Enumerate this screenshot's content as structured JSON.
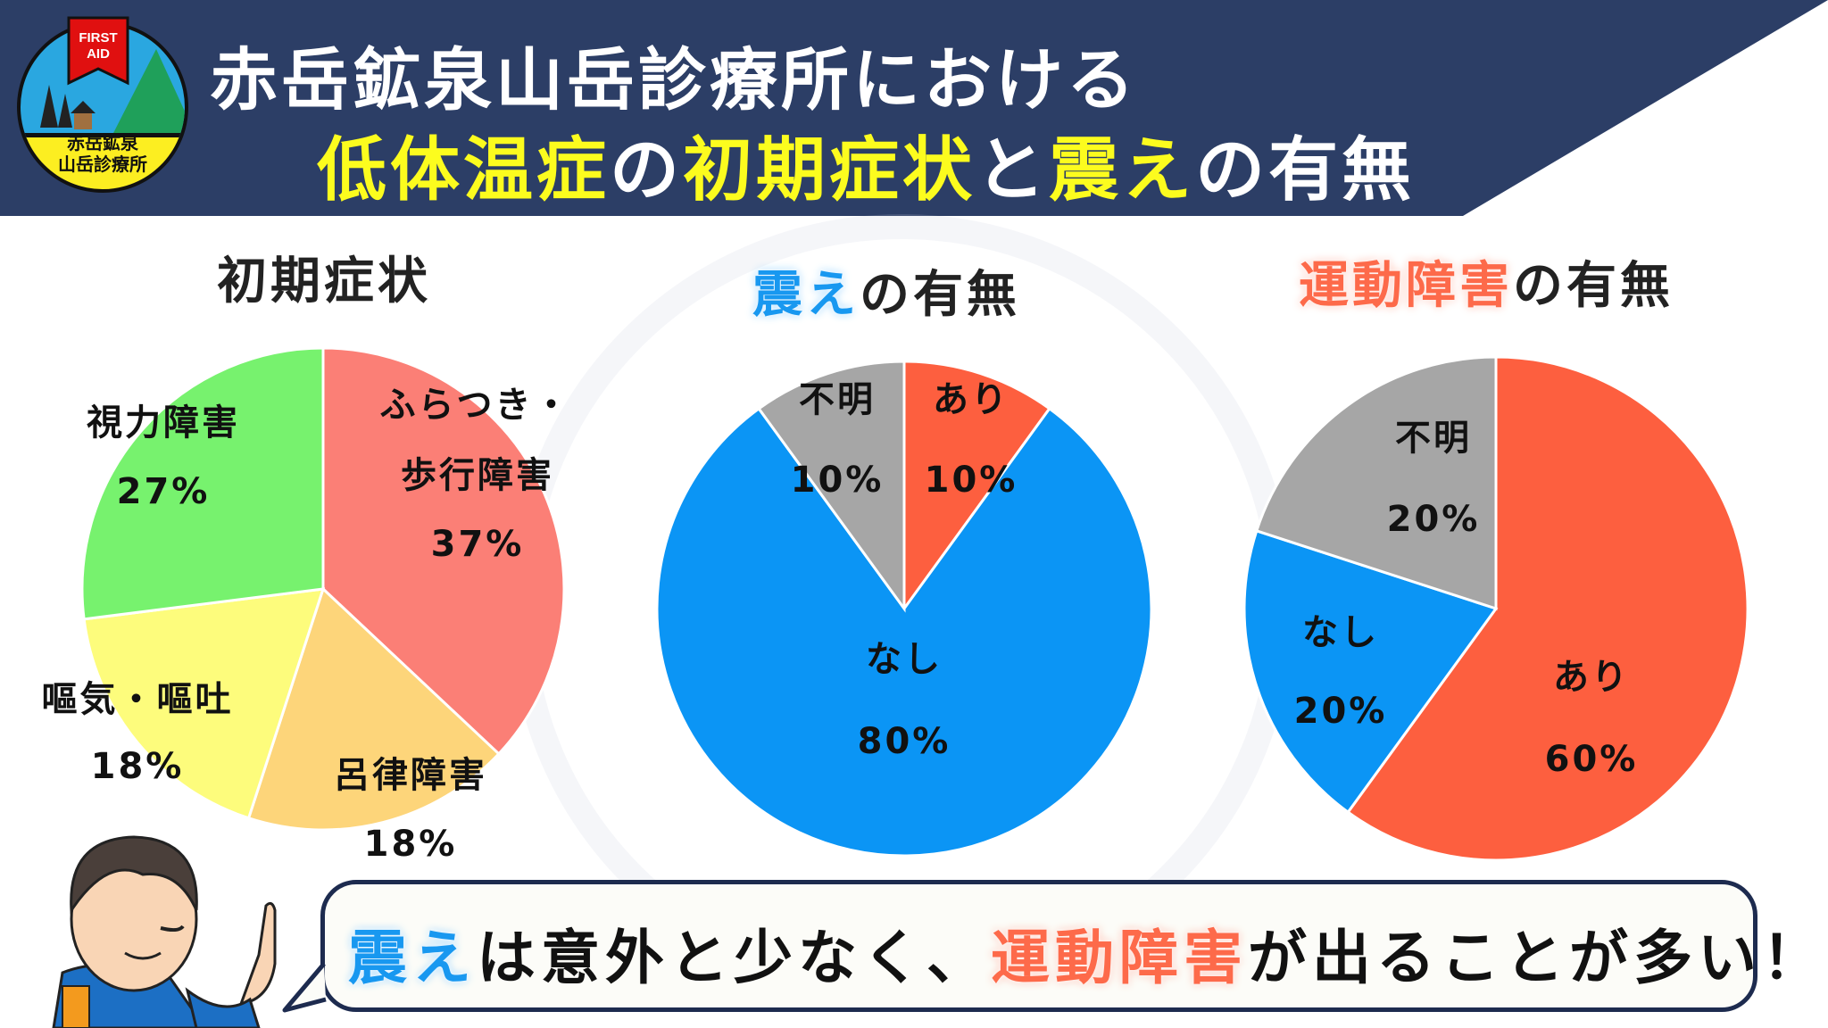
{
  "header": {
    "title_line1": "赤岳鉱泉山岳診療所における",
    "title_line2_parts": [
      "低体温症",
      "の",
      "初期症状",
      "と",
      "震え",
      "の有無"
    ],
    "background_color": "#2c3e66",
    "highlight_color": "#fcfc1e"
  },
  "logo": {
    "badge": "FIRST AID",
    "name_line1": "赤岳鉱泉",
    "name_line2": "山岳診療所"
  },
  "charts": {
    "initial": {
      "title": "初期症状"
    },
    "shiver": {
      "title_highlight": "震え",
      "title_rest": "の有無"
    },
    "motor": {
      "title_highlight": "運動障害",
      "title_rest": "の有無"
    }
  },
  "chart_data": [
    {
      "type": "pie",
      "title": "初期症状",
      "slices": [
        {
          "label": "ふらつき・",
          "label2": "歩行障害",
          "value": 37,
          "pct": "37%",
          "color": "#fb7f76"
        },
        {
          "label": "呂律障害",
          "value": 18,
          "pct": "18%",
          "color": "#fdd57a"
        },
        {
          "label": "嘔気・嘔吐",
          "value": 18,
          "pct": "18%",
          "color": "#fdfc7c"
        },
        {
          "label": "視力障害",
          "value": 27,
          "pct": "27%",
          "color": "#77f26e"
        }
      ]
    },
    {
      "type": "pie",
      "title": "震えの有無",
      "slices": [
        {
          "label": "あり",
          "value": 10,
          "pct": "10%",
          "color": "#fd5f3f"
        },
        {
          "label": "なし",
          "value": 80,
          "pct": "80%",
          "color": "#0b95f5"
        },
        {
          "label": "不明",
          "value": 10,
          "pct": "10%",
          "color": "#a6a6a6"
        }
      ]
    },
    {
      "type": "pie",
      "title": "運動障害の有無",
      "slices": [
        {
          "label": "あり",
          "value": 60,
          "pct": "60%",
          "color": "#fd5f3f"
        },
        {
          "label": "なし",
          "value": 20,
          "pct": "20%",
          "color": "#0b95f5"
        },
        {
          "label": "不明",
          "value": 20,
          "pct": "20%",
          "color": "#a6a6a6"
        }
      ]
    }
  ],
  "bubble": {
    "part1": "震え",
    "part2": "は意外と少なく、",
    "part3": "運動障害",
    "part4": "が出ることが多い！"
  }
}
